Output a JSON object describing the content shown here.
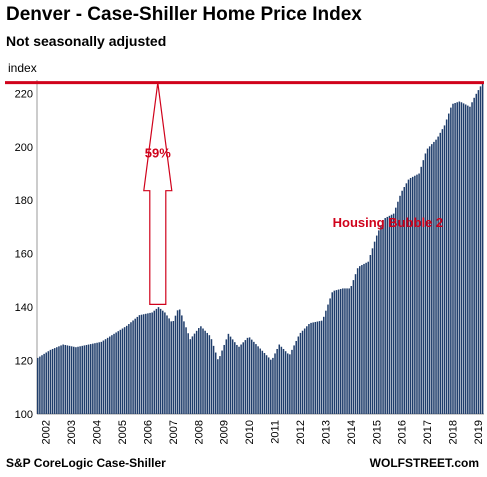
{
  "title": "Denver - Case-Shiller Home Price Index",
  "subtitle": "Not seasonally adjusted",
  "source": "S&P CoreLogic Case-Shiller",
  "brand": "WOLFSTREET.com",
  "colors": {
    "bar": "#1f3d6b",
    "peak_line": "#d0021b",
    "annotation": "#d0021b",
    "arrow_fill": "#ffffff"
  },
  "chart_data": {
    "type": "bar",
    "ylabel": "index",
    "ylim": [
      100,
      225
    ],
    "yticks": [
      100,
      120,
      140,
      160,
      180,
      200,
      220
    ],
    "xlabels": [
      "2002",
      "2003",
      "2004",
      "2005",
      "2006",
      "2007",
      "2008",
      "2009",
      "2010",
      "2011",
      "2012",
      "2013",
      "2014",
      "2015",
      "2016",
      "2017",
      "2018",
      "2019"
    ],
    "anchors": [
      [
        2002.0,
        121
      ],
      [
        2002.5,
        124
      ],
      [
        2003.0,
        126
      ],
      [
        2003.5,
        125
      ],
      [
        2004.0,
        126
      ],
      [
        2004.5,
        127
      ],
      [
        2005.0,
        130
      ],
      [
        2005.5,
        133
      ],
      [
        2006.0,
        137
      ],
      [
        2006.5,
        138
      ],
      [
        2006.75,
        140
      ],
      [
        2007.0,
        138
      ],
      [
        2007.3,
        134
      ],
      [
        2007.55,
        140
      ],
      [
        2008.0,
        128
      ],
      [
        2008.4,
        133
      ],
      [
        2008.8,
        129
      ],
      [
        2009.1,
        120
      ],
      [
        2009.5,
        130
      ],
      [
        2009.9,
        125
      ],
      [
        2010.3,
        129
      ],
      [
        2010.8,
        124
      ],
      [
        2011.2,
        120
      ],
      [
        2011.5,
        126
      ],
      [
        2011.9,
        122
      ],
      [
        2012.3,
        130
      ],
      [
        2012.7,
        134
      ],
      [
        2013.2,
        135
      ],
      [
        2013.6,
        146
      ],
      [
        2014.0,
        147
      ],
      [
        2014.3,
        147
      ],
      [
        2014.6,
        155
      ],
      [
        2015.0,
        157
      ],
      [
        2015.3,
        166
      ],
      [
        2015.6,
        173
      ],
      [
        2016.0,
        175
      ],
      [
        2016.3,
        183
      ],
      [
        2016.6,
        188
      ],
      [
        2017.0,
        190
      ],
      [
        2017.3,
        199
      ],
      [
        2017.7,
        203
      ],
      [
        2018.0,
        208
      ],
      [
        2018.3,
        216
      ],
      [
        2018.6,
        217
      ],
      [
        2019.0,
        215
      ],
      [
        2019.2,
        219
      ],
      [
        2019.5,
        224
      ]
    ],
    "peak_value": 224,
    "annotations": [
      {
        "text": "59%",
        "x": 2006.75,
        "y": 196
      },
      {
        "text": "Housing Bubble 2",
        "x": 2015.8,
        "y": 170
      }
    ],
    "arrow": {
      "x": 2006.75,
      "from": 141,
      "to": 224
    }
  }
}
